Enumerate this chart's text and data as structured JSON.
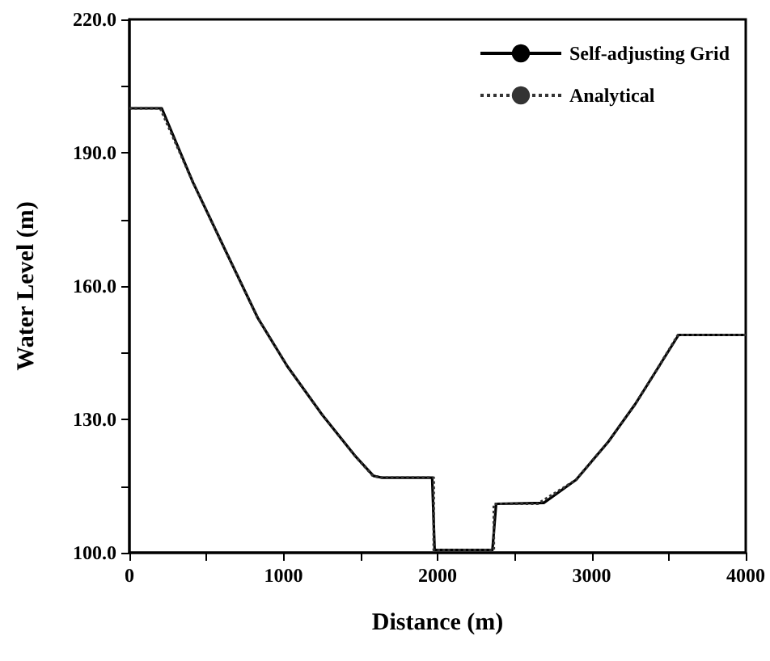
{
  "chart_data": {
    "type": "line",
    "xlabel": "Distance (m)",
    "ylabel": "Water Level (m)",
    "xlim": [
      0,
      4000
    ],
    "ylim": [
      100,
      220
    ],
    "xticks": [
      0,
      {
        "value": 500,
        "label": null
      },
      1000,
      {
        "value": 1500,
        "label": null
      },
      2000,
      {
        "value": 2500,
        "label": null
      },
      3000,
      {
        "value": 3500,
        "label": null
      },
      4000
    ],
    "yticks": [
      {
        "value": 100,
        "label": "100.0"
      },
      {
        "value": 115,
        "label": null
      },
      {
        "value": 130,
        "label": "130.0"
      },
      {
        "value": 145,
        "label": null
      },
      {
        "value": 160,
        "label": "160.0"
      },
      {
        "value": 175,
        "label": null
      },
      {
        "value": 190,
        "label": "190.0"
      },
      {
        "value": 205,
        "label": null
      },
      {
        "value": 220,
        "label": "220.0"
      }
    ],
    "grid": false,
    "legend": "top right",
    "marker": "none",
    "series": [
      {
        "name": "Self-adjusting Grid",
        "color": "#000000",
        "line_style": "solid",
        "x": [
          0,
          210,
          413,
          622,
          832,
          1024,
          1252,
          1462,
          1584,
          1636,
          1965,
          1981,
          2356,
          2380,
          2689,
          2899,
          3109,
          3284,
          3420,
          3564,
          4000
        ],
        "values": [
          200,
          200,
          183.3,
          168.1,
          152.9,
          142,
          131,
          121.9,
          117.3,
          116.9,
          116.9,
          100.6,
          100.6,
          111,
          111.2,
          116.4,
          125,
          133.5,
          141,
          149,
          149
        ]
      },
      {
        "name": "Analytical",
        "color": "#333333",
        "line_style": "dotted",
        "x": [
          0,
          200,
          413,
          622,
          832,
          1024,
          1252,
          1462,
          1580,
          1640,
          1975,
          1975,
          2365,
          2365,
          2650,
          2899,
          3109,
          3284,
          3420,
          3560,
          4000
        ],
        "values": [
          200,
          200,
          183.3,
          168.1,
          152.9,
          142,
          131,
          121.9,
          117.3,
          116.9,
          116.9,
          100.6,
          100.6,
          111,
          111,
          116.4,
          125,
          133.5,
          141,
          149,
          149
        ]
      }
    ]
  }
}
